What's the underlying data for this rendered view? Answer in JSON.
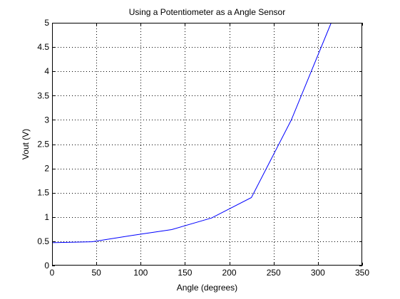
{
  "chart_data": {
    "type": "line",
    "title": "Using a Potentiometer as a Angle Sensor",
    "xlabel": "Angle (degrees)",
    "ylabel": "Vout (V)",
    "xlim": [
      0,
      350
    ],
    "ylim": [
      0,
      5
    ],
    "xticks": [
      0,
      50,
      100,
      150,
      200,
      250,
      300,
      350
    ],
    "yticks": [
      0,
      0.5,
      1,
      1.5,
      2,
      2.5,
      3,
      3.5,
      4,
      4.5,
      5
    ],
    "xtick_labels": [
      "0",
      "50",
      "100",
      "150",
      "200",
      "250",
      "300",
      "350"
    ],
    "ytick_labels": [
      "0",
      "0.5",
      "1",
      "1.5",
      "2",
      "2.5",
      "3",
      "3.5",
      "4",
      "4.5",
      "5"
    ],
    "grid": true,
    "grid_style": "dotted",
    "line_color": "#0000ff",
    "series": [
      {
        "x": [
          0,
          45,
          90,
          135,
          180,
          225,
          270,
          315
        ],
        "y": [
          0.47,
          0.49,
          0.62,
          0.74,
          0.98,
          1.4,
          3.0,
          5.0
        ]
      }
    ]
  }
}
